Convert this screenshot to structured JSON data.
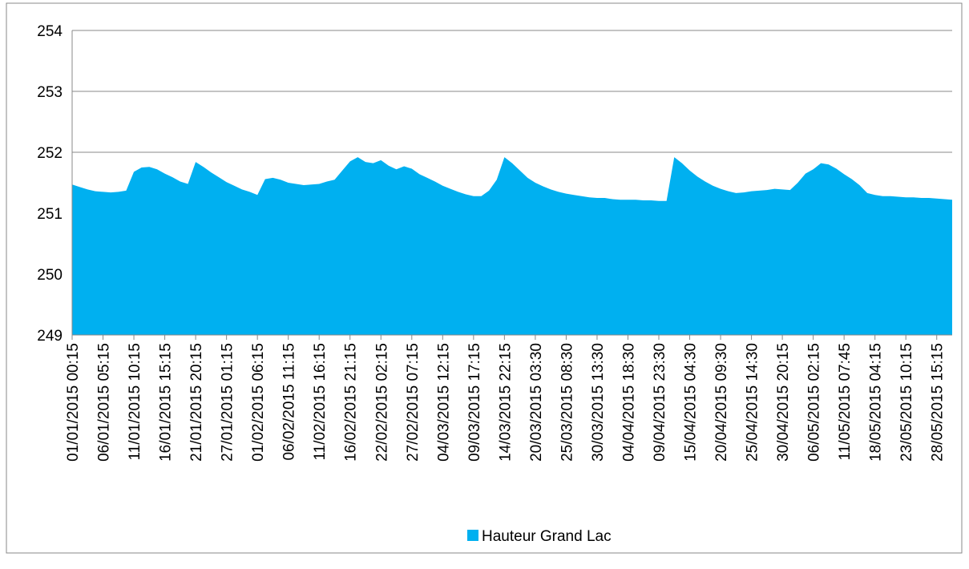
{
  "chart_data": {
    "type": "area",
    "series": [
      {
        "name": "Hauteur Grand Lac",
        "color": "#00b0f0",
        "values": [
          251.47,
          251.43,
          251.39,
          251.36,
          251.35,
          251.34,
          251.35,
          251.37,
          251.68,
          251.75,
          251.76,
          251.72,
          251.65,
          251.59,
          251.52,
          251.48,
          251.84,
          251.76,
          251.67,
          251.59,
          251.51,
          251.45,
          251.39,
          251.35,
          251.3,
          251.56,
          251.58,
          251.55,
          251.5,
          251.48,
          251.46,
          251.47,
          251.48,
          251.52,
          251.55,
          251.7,
          251.85,
          251.92,
          251.84,
          251.82,
          251.87,
          251.78,
          251.72,
          251.77,
          251.73,
          251.64,
          251.58,
          251.52,
          251.45,
          251.4,
          251.35,
          251.31,
          251.28,
          251.28,
          251.37,
          251.55,
          251.92,
          251.82,
          251.7,
          251.58,
          251.5,
          251.44,
          251.39,
          251.35,
          251.32,
          251.3,
          251.28,
          251.26,
          251.25,
          251.25,
          251.23,
          251.22,
          251.22,
          251.22,
          251.21,
          251.21,
          251.2,
          251.2,
          251.92,
          251.82,
          251.7,
          251.6,
          251.52,
          251.45,
          251.4,
          251.36,
          251.33,
          251.34,
          251.36,
          251.37,
          251.38,
          251.4,
          251.39,
          251.38,
          251.5,
          251.65,
          251.72,
          251.82,
          251.8,
          251.73,
          251.64,
          251.56,
          251.46,
          251.33,
          251.3,
          251.28,
          251.28,
          251.27,
          251.26,
          251.26,
          251.25,
          251.25,
          251.24,
          251.23,
          251.22
        ]
      }
    ],
    "categories": [
      "01/01/2015 00:15",
      null,
      null,
      null,
      "06/01/2015 05:15",
      null,
      null,
      null,
      "11/01/2015 10:15",
      null,
      null,
      null,
      "16/01/2015 15:15",
      null,
      null,
      null,
      "21/01/2015 20:15",
      null,
      null,
      null,
      "27/01/2015 01:15",
      null,
      null,
      null,
      "01/02/2015 06:15",
      null,
      null,
      null,
      "06/02/2015 11:15",
      null,
      null,
      null,
      "11/02/2015 16:15",
      null,
      null,
      null,
      "16/02/2015 21:15",
      null,
      null,
      null,
      "22/02/2015 02:15",
      null,
      null,
      null,
      "27/02/2015 07:15",
      null,
      null,
      null,
      "04/03/2015 12:15",
      null,
      null,
      null,
      "09/03/2015 17:15",
      null,
      null,
      null,
      "14/03/2015 22:15",
      null,
      null,
      null,
      "20/03/2015 03:30",
      null,
      null,
      null,
      "25/03/2015 08:30",
      null,
      null,
      null,
      "30/03/2015 13:30",
      null,
      null,
      null,
      "04/04/2015 18:30",
      null,
      null,
      null,
      "09/04/2015 23:30",
      null,
      null,
      null,
      "15/04/2015 04:30",
      null,
      null,
      null,
      "20/04/2015 09:30",
      null,
      null,
      null,
      "25/04/2015 14:30",
      null,
      null,
      null,
      "30/04/2015 20:15",
      null,
      null,
      null,
      "06/05/2015 02:15",
      null,
      null,
      null,
      "11/05/2015 07:45",
      null,
      null,
      null,
      "18/05/2015 04:15",
      null,
      null,
      null,
      "23/05/2015 10:15",
      null,
      null,
      null,
      "28/05/2015 15:15",
      null,
      null
    ],
    "ylim": [
      249,
      254
    ],
    "yticks": [
      249,
      250,
      251,
      252,
      253,
      254
    ],
    "grid": true,
    "legend": "bottom"
  }
}
